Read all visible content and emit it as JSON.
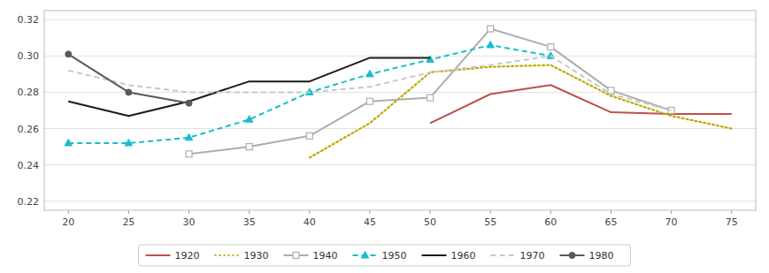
{
  "chart_data": {
    "type": "line",
    "series": [
      {
        "name": "1920",
        "color": "#C0504D",
        "line_style": "solid",
        "x": [
          50,
          55,
          60,
          65,
          70,
          75
        ],
        "values": [
          0.263,
          0.279,
          0.284,
          0.269,
          0.268,
          0.268
        ]
      },
      {
        "name": "1930",
        "color": "#BFAA00",
        "line_style": "dotted",
        "x": [
          40,
          45,
          50,
          55,
          60,
          65,
          70,
          75
        ],
        "values": [
          0.244,
          0.263,
          0.291,
          0.294,
          0.295,
          0.278,
          0.267,
          0.26
        ]
      },
      {
        "name": "1940",
        "color": "#ADADAD",
        "line_style": "solid",
        "marker": "open-square",
        "x": [
          30,
          35,
          40,
          45,
          50,
          55,
          60,
          65,
          70
        ],
        "values": [
          0.246,
          0.25,
          0.256,
          0.275,
          0.277,
          0.315,
          0.305,
          0.281,
          0.27
        ]
      },
      {
        "name": "1950",
        "color": "#17BECF",
        "line_style": "dashed",
        "marker": "triangle",
        "x": [
          20,
          25,
          30,
          35,
          40,
          45,
          50,
          55,
          60
        ],
        "values": [
          0.252,
          0.252,
          0.255,
          0.265,
          0.28,
          0.29,
          0.298,
          0.306,
          0.3
        ]
      },
      {
        "name": "1960",
        "color": "#1A1A1A",
        "line_style": "solid",
        "x": [
          20,
          25,
          30,
          35,
          40,
          45,
          50
        ],
        "values": [
          0.275,
          0.267,
          0.275,
          0.286,
          0.286,
          0.299,
          0.299
        ]
      },
      {
        "name": "1970",
        "color": "#C8C8C8",
        "line_style": "dashed",
        "x": [
          20,
          25,
          30,
          35,
          40,
          45,
          50,
          55,
          60,
          65,
          70
        ],
        "values": [
          0.292,
          0.284,
          0.28,
          0.28,
          0.28,
          0.283,
          0.291,
          0.295,
          0.3,
          0.279,
          0.27
        ]
      },
      {
        "name": "1980",
        "color": "#595959",
        "line_style": "solid",
        "marker": "circle",
        "x": [
          20,
          25,
          30
        ],
        "values": [
          0.301,
          0.28,
          0.274
        ]
      }
    ],
    "xlim": [
      18,
      77
    ],
    "xticks": [
      20,
      25,
      30,
      35,
      40,
      45,
      50,
      55,
      60,
      65,
      70,
      75
    ],
    "ylim": [
      0.215,
      0.325
    ],
    "yticks": [
      0.22,
      0.24,
      0.26,
      0.28,
      {
        "value": 0.3,
        "label": "0.30"
      },
      0.32
    ],
    "grid": true,
    "legend": "bottom"
  }
}
